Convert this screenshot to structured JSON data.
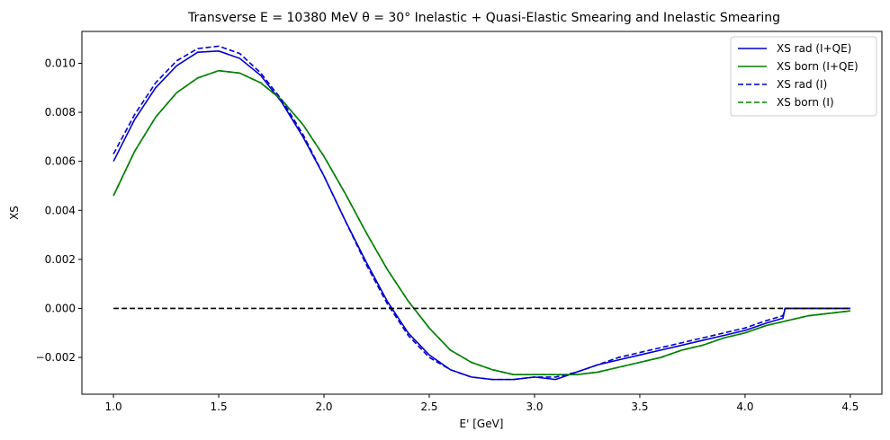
{
  "chart_data": {
    "type": "line",
    "title": "Transverse E = 10380 MeV θ = 30° Inelastic + Quasi-Elastic Smearing and Inelastic Smearing",
    "xlabel": "E' [GeV]",
    "ylabel": "XS",
    "xlim": [
      0.85,
      4.65
    ],
    "ylim": [
      -0.0035,
      0.0113
    ],
    "xticks": [
      1.0,
      1.5,
      2.0,
      2.5,
      3.0,
      3.5,
      4.0,
      4.5
    ],
    "xtick_labels": [
      "1.0",
      "1.5",
      "2.0",
      "2.5",
      "3.0",
      "3.5",
      "4.0",
      "4.5"
    ],
    "yticks": [
      -0.002,
      0.0,
      0.002,
      0.004,
      0.006,
      0.008,
      0.01
    ],
    "ytick_labels": [
      "−0.002",
      "0.000",
      "0.002",
      "0.004",
      "0.006",
      "0.008",
      "0.010"
    ],
    "grid": false,
    "legend_position": "top-right",
    "series": [
      {
        "name": "XS rad (I+QE)",
        "color": "#0000cc",
        "dash": "solid",
        "x": [
          1.0,
          1.1,
          1.2,
          1.3,
          1.4,
          1.5,
          1.6,
          1.7,
          1.8,
          1.9,
          2.0,
          2.1,
          2.2,
          2.3,
          2.4,
          2.5,
          2.6,
          2.7,
          2.8,
          2.9,
          3.0,
          3.1,
          3.2,
          3.3,
          3.4,
          3.5,
          3.6,
          3.7,
          3.8,
          3.9,
          4.0,
          4.1,
          4.18,
          4.19,
          4.3,
          4.4,
          4.5
        ],
        "y": [
          0.006,
          0.0077,
          0.009,
          0.0099,
          0.01045,
          0.0105,
          0.0102,
          0.0095,
          0.0084,
          0.007,
          0.0054,
          0.0036,
          0.0019,
          0.0003,
          -0.001,
          -0.0019,
          -0.0025,
          -0.0028,
          -0.0029,
          -0.0029,
          -0.0028,
          -0.0029,
          -0.0026,
          -0.0023,
          -0.0021,
          -0.0019,
          -0.0017,
          -0.0015,
          -0.0013,
          -0.0011,
          -0.0009,
          -0.0006,
          -0.0004,
          0.0,
          0.0,
          0.0,
          0.0
        ]
      },
      {
        "name": "XS born (I+QE)",
        "color": "#008000",
        "dash": "solid",
        "x": [
          1.0,
          1.1,
          1.2,
          1.3,
          1.4,
          1.5,
          1.6,
          1.7,
          1.8,
          1.9,
          2.0,
          2.1,
          2.2,
          2.3,
          2.4,
          2.5,
          2.6,
          2.7,
          2.8,
          2.9,
          3.0,
          3.1,
          3.2,
          3.3,
          3.4,
          3.5,
          3.6,
          3.7,
          3.8,
          3.9,
          4.0,
          4.1,
          4.2,
          4.3,
          4.4,
          4.5
        ],
        "y": [
          0.0046,
          0.0064,
          0.0078,
          0.0088,
          0.0094,
          0.0097,
          0.0096,
          0.0092,
          0.0085,
          0.0075,
          0.0062,
          0.0047,
          0.0031,
          0.0016,
          0.0003,
          -0.0008,
          -0.0017,
          -0.0022,
          -0.0025,
          -0.0027,
          -0.0027,
          -0.0027,
          -0.0027,
          -0.0026,
          -0.0024,
          -0.0022,
          -0.002,
          -0.0017,
          -0.0015,
          -0.0012,
          -0.001,
          -0.0007,
          -0.0005,
          -0.0003,
          -0.0002,
          -0.0001
        ]
      },
      {
        "name": "XS rad (I)",
        "color": "#0000cc",
        "dash": "dashed",
        "x": [
          1.0,
          1.1,
          1.2,
          1.3,
          1.4,
          1.5,
          1.6,
          1.7,
          1.8,
          1.9,
          2.0,
          2.1,
          2.2,
          2.3,
          2.4,
          2.5,
          2.6,
          2.7,
          2.8,
          2.9,
          3.0,
          3.1,
          3.2,
          3.3,
          3.4,
          3.5,
          3.6,
          3.7,
          3.8,
          3.9,
          4.0,
          4.1,
          4.18,
          4.19,
          4.3,
          4.4,
          4.5
        ],
        "y": [
          0.0063,
          0.0079,
          0.0092,
          0.0101,
          0.0106,
          0.0107,
          0.0104,
          0.0096,
          0.0085,
          0.0071,
          0.0054,
          0.0036,
          0.0018,
          0.0002,
          -0.0011,
          -0.002,
          -0.0025,
          -0.0028,
          -0.0029,
          -0.0029,
          -0.0028,
          -0.0028,
          -0.0026,
          -0.0023,
          -0.002,
          -0.0018,
          -0.0016,
          -0.0014,
          -0.0012,
          -0.001,
          -0.0008,
          -0.0005,
          -0.0003,
          0.0,
          0.0,
          0.0,
          0.0
        ]
      },
      {
        "name": "XS born (I)",
        "color": "#008000",
        "dash": "dashed",
        "x": [
          1.0,
          1.1,
          1.2,
          1.3,
          1.4,
          1.5,
          1.6,
          1.7,
          1.8,
          1.9,
          2.0,
          2.1,
          2.2,
          2.3,
          2.4,
          2.5,
          2.6,
          2.7,
          2.8,
          2.9,
          3.0,
          3.1,
          3.2,
          3.3,
          3.4,
          3.5,
          3.6,
          3.7,
          3.8,
          3.9,
          4.0,
          4.1,
          4.2,
          4.3,
          4.4,
          4.5
        ],
        "y": [
          0.0046,
          0.0064,
          0.0078,
          0.0088,
          0.0094,
          0.0097,
          0.0096,
          0.0092,
          0.0085,
          0.0075,
          0.0062,
          0.0047,
          0.0031,
          0.0016,
          0.0003,
          -0.0008,
          -0.0017,
          -0.0022,
          -0.0025,
          -0.0027,
          -0.0027,
          -0.0027,
          -0.0027,
          -0.0026,
          -0.0024,
          -0.0022,
          -0.002,
          -0.0017,
          -0.0015,
          -0.0012,
          -0.001,
          -0.0007,
          -0.0005,
          -0.0003,
          -0.0002,
          -0.0001
        ]
      },
      {
        "name": "",
        "color": "#000000",
        "dash": "dashed",
        "x": [
          1.0,
          4.5
        ],
        "y": [
          0.0,
          0.0
        ]
      }
    ]
  }
}
